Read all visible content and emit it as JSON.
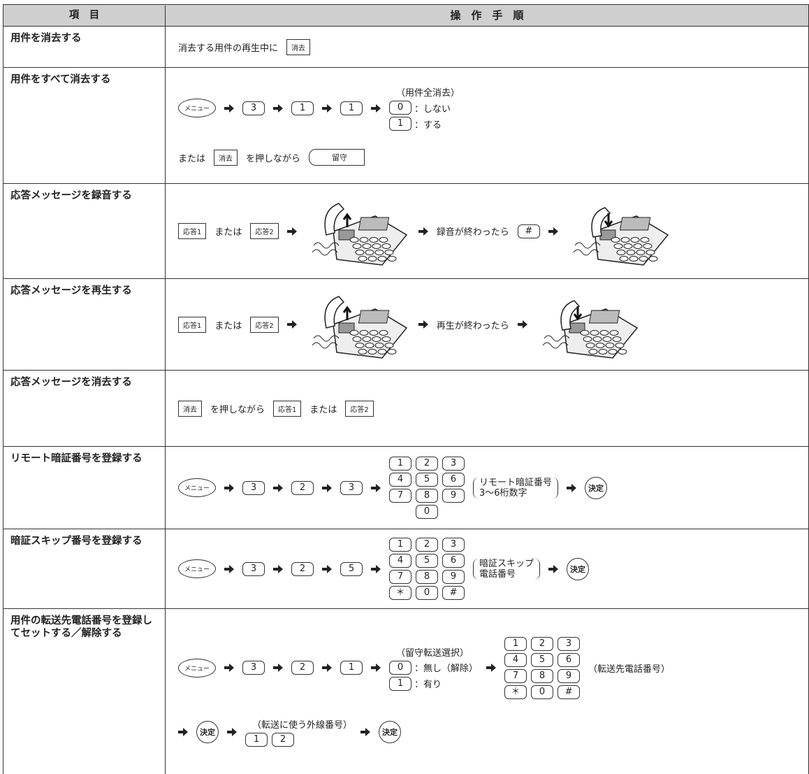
{
  "header": {
    "item": "項　目",
    "procedure": "操　作　手　順"
  },
  "rows": [
    {
      "item": "用件を消去する",
      "lines": [
        [
          {
            "type": "text",
            "text": "消去する用件の再生中に"
          },
          {
            "type": "box",
            "label": "消去"
          }
        ]
      ]
    },
    {
      "item": "用件をすべて消去する",
      "lines": [
        [
          {
            "type": "menu",
            "label": "メニュー"
          },
          {
            "type": "arrow"
          },
          {
            "type": "key",
            "label": "3"
          },
          {
            "type": "arrow"
          },
          {
            "type": "key",
            "label": "1"
          },
          {
            "type": "arrow"
          },
          {
            "type": "key",
            "label": "1"
          },
          {
            "type": "arrow"
          },
          {
            "type": "choices",
            "title": "（用件全消去）",
            "options": [
              {
                "key": "0",
                "text": "：しない"
              },
              {
                "key": "1",
                "text": "：する"
              }
            ]
          }
        ],
        [
          {
            "type": "text",
            "text": "または"
          },
          {
            "type": "box",
            "label": "消去"
          },
          {
            "type": "text",
            "text": "を押しながら"
          },
          {
            "type": "wide",
            "label": "留守"
          }
        ]
      ]
    },
    {
      "item": "応答メッセージを録音する",
      "lines": [
        [
          {
            "type": "box",
            "label": "応答1"
          },
          {
            "type": "text",
            "text": "または"
          },
          {
            "type": "box",
            "label": "応答2"
          },
          {
            "type": "arrow"
          },
          {
            "type": "phone",
            "direction": "up"
          },
          {
            "type": "arrow"
          },
          {
            "type": "text",
            "text": "録音が終わったら"
          },
          {
            "type": "key",
            "label": "#"
          },
          {
            "type": "arrow"
          },
          {
            "type": "phone",
            "direction": "down"
          }
        ]
      ]
    },
    {
      "item": "応答メッセージを再生する",
      "lines": [
        [
          {
            "type": "box",
            "label": "応答1"
          },
          {
            "type": "text",
            "text": "または"
          },
          {
            "type": "box",
            "label": "応答2"
          },
          {
            "type": "arrow"
          },
          {
            "type": "phone",
            "direction": "up"
          },
          {
            "type": "arrow"
          },
          {
            "type": "text",
            "text": "再生が終わったら"
          },
          {
            "type": "arrow"
          },
          {
            "type": "phone",
            "direction": "down"
          }
        ]
      ]
    },
    {
      "item": "応答メッセージを消去する",
      "lines": [
        [
          {
            "type": "box",
            "label": "消去"
          },
          {
            "type": "text",
            "text": "を押しながら"
          },
          {
            "type": "box",
            "label": "応答1"
          },
          {
            "type": "text",
            "text": "または"
          },
          {
            "type": "box",
            "label": "応答2"
          }
        ]
      ]
    },
    {
      "item": "リモート暗証番号を登録する",
      "lines": [
        [
          {
            "type": "menu",
            "label": "メニュー"
          },
          {
            "type": "arrow"
          },
          {
            "type": "key",
            "label": "3"
          },
          {
            "type": "arrow"
          },
          {
            "type": "key",
            "label": "2"
          },
          {
            "type": "arrow"
          },
          {
            "type": "key",
            "label": "3"
          },
          {
            "type": "arrow"
          },
          {
            "type": "keypad",
            "keys": [
              [
                "1",
                "2",
                "3"
              ],
              [
                "4",
                "5",
                "6"
              ],
              [
                "7",
                "8",
                "9"
              ],
              [
                "0"
              ]
            ],
            "notes": [
              "リモート暗証番号",
              "3～6桁数字"
            ]
          },
          {
            "type": "arrow"
          },
          {
            "type": "kettei",
            "label": "決定"
          }
        ]
      ]
    },
    {
      "item": "暗証スキップ番号を登録する",
      "lines": [
        [
          {
            "type": "menu",
            "label": "メニュー"
          },
          {
            "type": "arrow"
          },
          {
            "type": "key",
            "label": "3"
          },
          {
            "type": "arrow"
          },
          {
            "type": "key",
            "label": "2"
          },
          {
            "type": "arrow"
          },
          {
            "type": "key",
            "label": "5"
          },
          {
            "type": "arrow"
          },
          {
            "type": "keypad",
            "keys": [
              [
                "1",
                "2",
                "3"
              ],
              [
                "4",
                "5",
                "6"
              ],
              [
                "7",
                "8",
                "9"
              ],
              [
                "＊",
                "0",
                "#"
              ]
            ],
            "notes": [
              "暗証スキップ",
              "電話番号"
            ]
          },
          {
            "type": "arrow"
          },
          {
            "type": "kettei",
            "label": "決定"
          }
        ]
      ]
    },
    {
      "item": "用件の転送先電話番号を登録してセットする／解除する",
      "lines": [
        [
          {
            "type": "menu",
            "label": "メニュー"
          },
          {
            "type": "arrow"
          },
          {
            "type": "key",
            "label": "3"
          },
          {
            "type": "arrow"
          },
          {
            "type": "key",
            "label": "2"
          },
          {
            "type": "arrow"
          },
          {
            "type": "key",
            "label": "1"
          },
          {
            "type": "arrow"
          },
          {
            "type": "choices",
            "title": "（留守転送選択）",
            "options": [
              {
                "key": "0",
                "text": "：無し（解除）"
              },
              {
                "key": "1",
                "text": "：有り"
              }
            ]
          },
          {
            "type": "arrow"
          },
          {
            "type": "keypad",
            "keys": [
              [
                "1",
                "2",
                "3"
              ],
              [
                "4",
                "5",
                "6"
              ],
              [
                "7",
                "8",
                "9"
              ],
              [
                "＊",
                "0",
                "#"
              ]
            ],
            "note": "（転送先電話番号）"
          }
        ],
        [
          {
            "type": "arrow"
          },
          {
            "type": "kettei",
            "label": "決定"
          },
          {
            "type": "arrow"
          },
          {
            "type": "group",
            "title": "（転送に使う外線番号）",
            "keys": [
              "1",
              "2"
            ]
          },
          {
            "type": "arrow"
          },
          {
            "type": "kettei",
            "label": "決定"
          }
        ]
      ]
    }
  ]
}
